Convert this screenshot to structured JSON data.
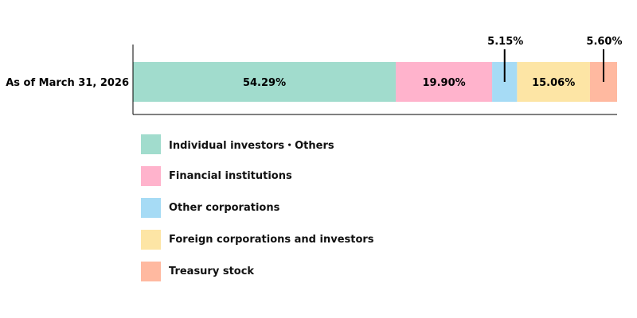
{
  "chart_data": {
    "type": "bar",
    "orientation": "horizontal",
    "stacked": true,
    "categories": [
      "As of March 31, 2026"
    ],
    "series": [
      {
        "name": "Individual investors・Others",
        "values": [
          54.29
        ],
        "label": "54.29%",
        "color": "#a1dccd",
        "label_position": "inside"
      },
      {
        "name": "Financial institutions",
        "values": [
          19.9
        ],
        "label": "19.90%",
        "color": "#ffb3cc",
        "label_position": "inside"
      },
      {
        "name": "Other corporations",
        "values": [
          5.15
        ],
        "label": "5.15%",
        "color": "#a6dbf5",
        "label_position": "outside"
      },
      {
        "name": "Foreign corporations and investors",
        "values": [
          15.06
        ],
        "label": "15.06%",
        "color": "#fde5a5",
        "label_position": "inside"
      },
      {
        "name": "Treasury stock",
        "values": [
          5.6
        ],
        "label": "5.60%",
        "color": "#ffb9a0",
        "label_position": "outside"
      }
    ],
    "xlim": [
      0,
      100
    ],
    "grid": false,
    "legend_position": "bottom"
  }
}
